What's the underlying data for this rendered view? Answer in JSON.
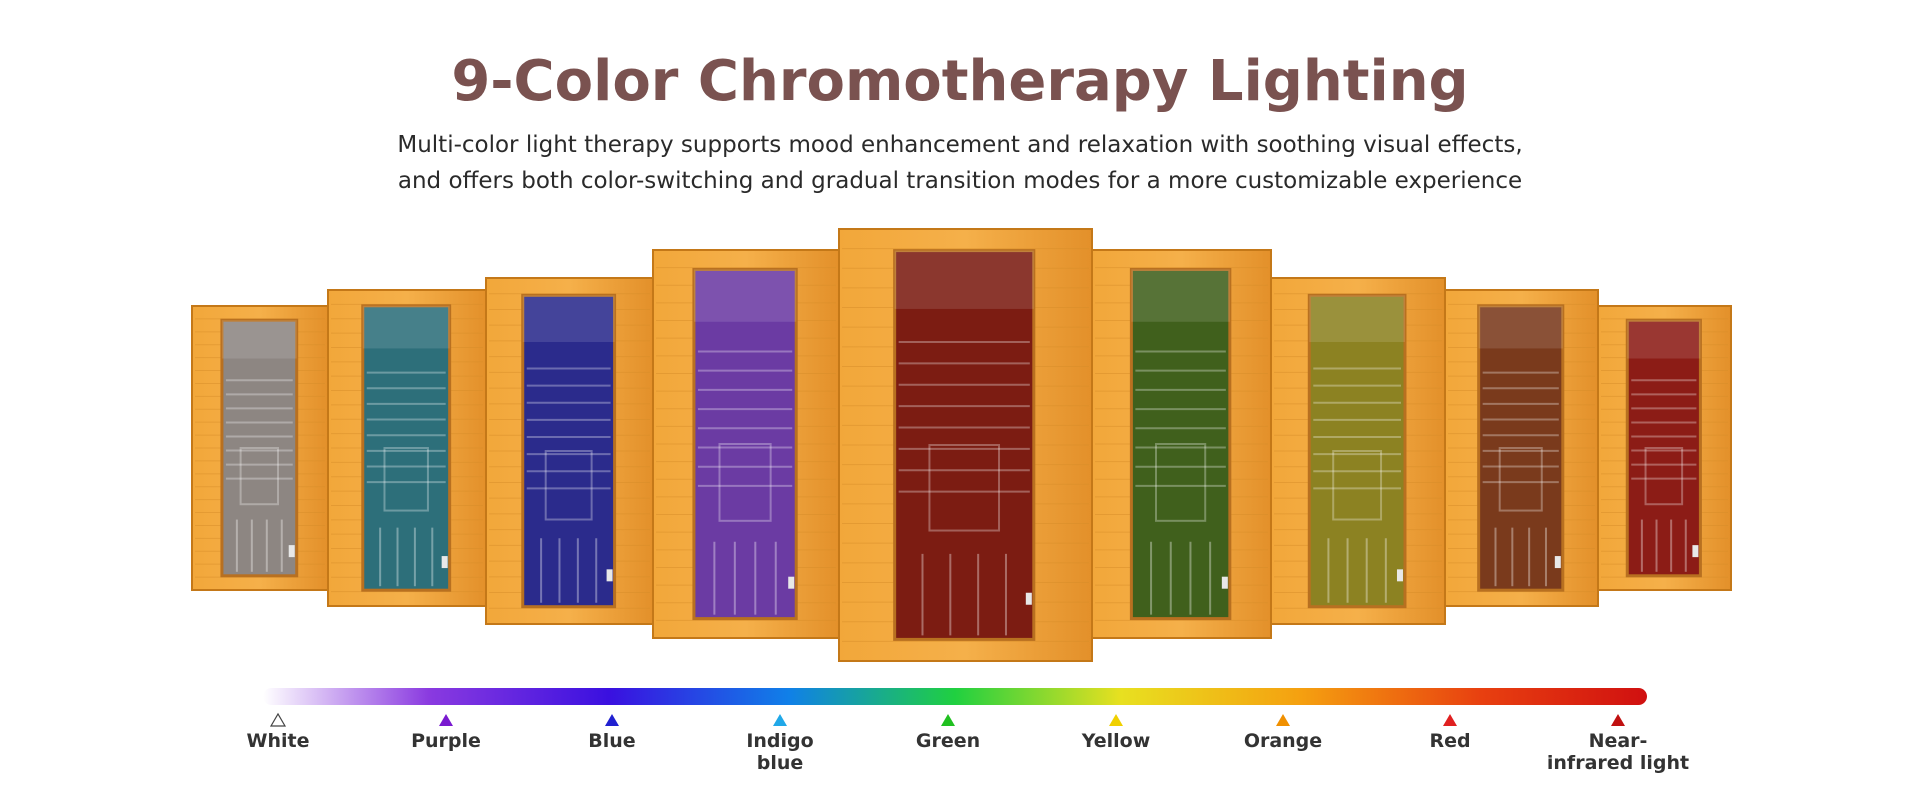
{
  "header": {
    "title": "9-Color Chromotherapy Lighting",
    "subtitle": [
      "Multi-color light therapy supports mood enhancement and relaxation with soothing visual effects,",
      "and offers both color-switching and gradual transition modes for a more customizable experience"
    ]
  },
  "colors": [
    {
      "label": [
        "White"
      ]
    },
    {
      "label": [
        "Purple"
      ]
    },
    {
      "label": [
        "Blue"
      ]
    },
    {
      "label": [
        "Indigo",
        "blue"
      ]
    },
    {
      "label": [
        "Green"
      ]
    },
    {
      "label": [
        "Yellow"
      ]
    },
    {
      "label": [
        "Orange"
      ]
    },
    {
      "label": [
        "Red"
      ]
    },
    {
      "label": [
        "Near-",
        "infrared light"
      ]
    }
  ]
}
